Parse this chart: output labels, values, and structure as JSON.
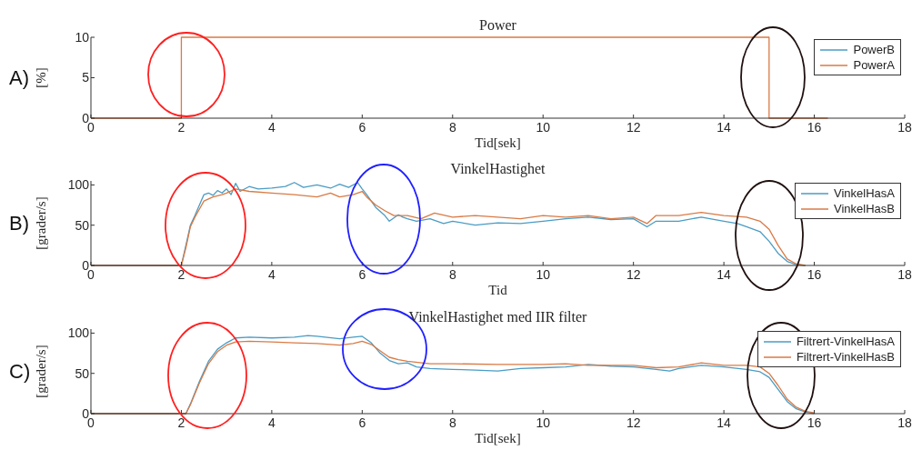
{
  "chart_data": [
    {
      "type": "line",
      "title": "Power",
      "xlabel": "Tid[sek]",
      "ylabel": "[%]",
      "annotations": [
        "A)"
      ],
      "xlim": [
        0,
        18
      ],
      "xticks": [
        0,
        2,
        4,
        6,
        8,
        10,
        12,
        14,
        16,
        18
      ],
      "ylim": [
        0,
        10
      ],
      "yticks": [
        0,
        5,
        10
      ],
      "legend": "top right",
      "series": [
        {
          "name": "PowerB",
          "color": "#4a9cc4"
        },
        {
          "name": "PowerA",
          "color": "#d97a45",
          "x": [
            0,
            2,
            2,
            15,
            15,
            16.3
          ],
          "values": [
            0,
            0,
            10,
            10,
            0,
            0
          ]
        }
      ]
    },
    {
      "type": "line",
      "title": "VinkelHastighet",
      "xlabel": "Tid",
      "ylabel": "[grader/s]",
      "annotations": [
        "B)"
      ],
      "xlim": [
        0,
        18
      ],
      "xticks": [
        0,
        2,
        4,
        6,
        8,
        10,
        12,
        14,
        16,
        18
      ],
      "ylim": [
        0,
        105
      ],
      "yticks": [
        0,
        50,
        100
      ],
      "legend": "top right",
      "series": [
        {
          "name": "VinkelHasA",
          "color": "#4a9cc4",
          "x": [
            0,
            2.0,
            2.1,
            2.2,
            2.3,
            2.4,
            2.5,
            2.6,
            2.7,
            2.8,
            2.9,
            3.0,
            3.1,
            3.2,
            3.3,
            3.5,
            3.7,
            4.0,
            4.3,
            4.5,
            4.7,
            5.0,
            5.3,
            5.5,
            5.7,
            5.9,
            6.0,
            6.1,
            6.3,
            6.5,
            6.6,
            6.8,
            6.9,
            7.0,
            7.2,
            7.5,
            7.8,
            8.0,
            8.5,
            9.0,
            9.5,
            10.0,
            10.5,
            11.0,
            11.5,
            12.0,
            12.3,
            12.5,
            13.0,
            13.5,
            14.0,
            14.3,
            14.5,
            14.8,
            15.0,
            15.2,
            15.4,
            15.6,
            15.8
          ],
          "values": [
            0,
            0,
            25,
            50,
            62,
            75,
            88,
            90,
            87,
            93,
            90,
            95,
            88,
            102,
            92,
            98,
            95,
            96,
            98,
            103,
            97,
            100,
            96,
            101,
            97,
            103,
            95,
            88,
            72,
            62,
            55,
            63,
            60,
            58,
            55,
            58,
            52,
            55,
            50,
            53,
            52,
            55,
            58,
            60,
            57,
            58,
            48,
            55,
            55,
            60,
            55,
            52,
            48,
            42,
            30,
            15,
            5,
            1,
            0
          ]
        },
        {
          "name": "VinkelHasB",
          "color": "#d97a45",
          "x": [
            0,
            2.0,
            2.1,
            2.2,
            2.3,
            2.4,
            2.5,
            2.7,
            2.9,
            3.0,
            3.2,
            3.5,
            4.0,
            4.5,
            5.0,
            5.3,
            5.5,
            5.8,
            6.0,
            6.1,
            6.3,
            6.5,
            6.7,
            7.0,
            7.3,
            7.6,
            8.0,
            8.5,
            9.0,
            9.5,
            10.0,
            10.5,
            11.0,
            11.5,
            12.0,
            12.3,
            12.5,
            13.0,
            13.5,
            14.0,
            14.5,
            14.8,
            15.0,
            15.2,
            15.4,
            15.6,
            15.8
          ],
          "values": [
            0,
            0,
            22,
            48,
            60,
            70,
            80,
            85,
            88,
            90,
            95,
            92,
            90,
            88,
            85,
            90,
            85,
            88,
            92,
            85,
            75,
            68,
            62,
            62,
            58,
            65,
            60,
            62,
            60,
            58,
            62,
            60,
            62,
            58,
            60,
            52,
            62,
            62,
            66,
            62,
            60,
            55,
            45,
            25,
            8,
            2,
            0
          ]
        }
      ]
    },
    {
      "type": "line",
      "title": "VinkelHastighet med IIR filter",
      "xlabel": "Tid[sek]",
      "ylabel": "[grader/s]",
      "annotations": [
        "C)"
      ],
      "xlim": [
        0,
        18
      ],
      "xticks": [
        0,
        2,
        4,
        6,
        8,
        10,
        12,
        14,
        16,
        18
      ],
      "ylim": [
        0,
        105
      ],
      "yticks": [
        0,
        50,
        100
      ],
      "legend": "top right",
      "series": [
        {
          "name": "Filtrert-VinkelHasA",
          "color": "#4a9cc4",
          "x": [
            0,
            2.1,
            2.2,
            2.4,
            2.6,
            2.8,
            3.0,
            3.2,
            3.5,
            4.0,
            4.5,
            4.8,
            5.0,
            5.5,
            5.8,
            6.0,
            6.2,
            6.4,
            6.6,
            6.8,
            7.0,
            7.2,
            7.5,
            8.0,
            8.5,
            9.0,
            9.5,
            10.0,
            10.5,
            11.0,
            11.5,
            12.0,
            12.5,
            12.8,
            13.0,
            13.5,
            14.0,
            14.5,
            14.8,
            15.0,
            15.2,
            15.4,
            15.6,
            15.8,
            16.0
          ],
          "values": [
            0,
            0,
            12,
            40,
            65,
            80,
            88,
            94,
            95,
            94,
            95,
            97,
            96,
            93,
            95,
            96,
            88,
            75,
            66,
            62,
            63,
            58,
            56,
            55,
            54,
            53,
            56,
            57,
            58,
            61,
            59,
            58,
            55,
            53,
            56,
            60,
            58,
            55,
            52,
            45,
            30,
            15,
            6,
            2,
            0
          ]
        },
        {
          "name": "Filtrert-VinkelHasB",
          "color": "#d97a45",
          "x": [
            0,
            2.1,
            2.2,
            2.4,
            2.6,
            2.8,
            3.0,
            3.2,
            3.5,
            4.0,
            4.5,
            5.0,
            5.5,
            5.8,
            6.0,
            6.2,
            6.4,
            6.6,
            6.8,
            7.0,
            7.5,
            8.0,
            9.0,
            10.0,
            10.5,
            11.0,
            12.0,
            12.5,
            13.0,
            13.5,
            14.0,
            14.5,
            14.8,
            15.0,
            15.2,
            15.4,
            15.6,
            15.8,
            16.0
          ],
          "values": [
            0,
            0,
            11,
            38,
            62,
            77,
            85,
            89,
            90,
            89,
            88,
            87,
            85,
            87,
            90,
            86,
            78,
            70,
            67,
            65,
            62,
            62,
            61,
            61,
            62,
            60,
            60,
            57,
            58,
            63,
            60,
            60,
            58,
            50,
            35,
            18,
            8,
            3,
            1
          ]
        }
      ]
    }
  ]
}
